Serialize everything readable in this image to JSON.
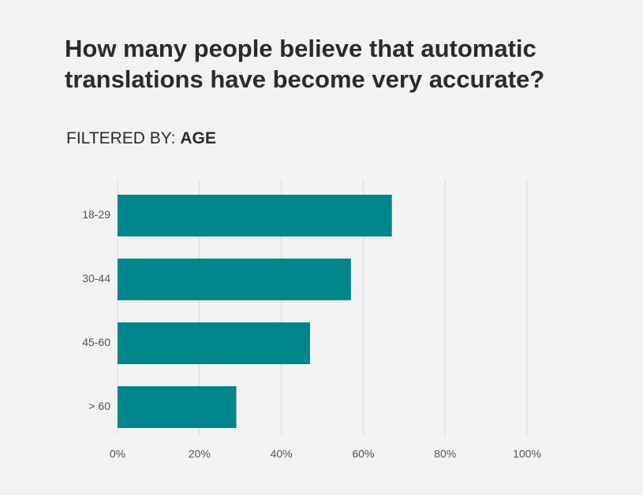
{
  "chart_data": {
    "type": "barh",
    "title": [
      "How many people believe that automatic",
      "translations have become very accurate?"
    ],
    "filter_label": "FILTERED BY:",
    "filter_value": "AGE",
    "categories": [
      "18-29",
      "30-44",
      "45-60",
      "> 60"
    ],
    "values": [
      67,
      57,
      47,
      29
    ],
    "color": "#00868a",
    "xlim": [
      0,
      100
    ],
    "xticks": [
      {
        "value": 0,
        "label": "0%"
      },
      {
        "value": 20,
        "label": "20%"
      },
      {
        "value": 40,
        "label": "40%"
      },
      {
        "value": 60,
        "label": "60%"
      },
      {
        "value": 80,
        "label": "80%"
      },
      {
        "value": 100,
        "label": "100%"
      }
    ],
    "grid": true
  }
}
